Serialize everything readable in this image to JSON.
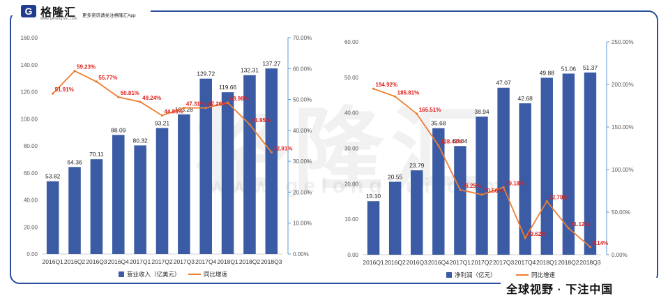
{
  "header": {
    "logo_letter": "G",
    "brand": "格隆汇",
    "brand_url": "www.gelonghui.com",
    "slogan": "更多资讯请关注格隆汇App"
  },
  "footer": {
    "text": "全球视野 · 下注中国"
  },
  "watermark": {
    "text": "格隆汇",
    "url": "www.gelonghui.com"
  },
  "chart_data": [
    {
      "type": "bar",
      "categories": [
        "2016Q1",
        "2016Q2",
        "2016Q3",
        "2016Q4",
        "2017Q1",
        "2017Q2",
        "2017Q3",
        "2017Q4",
        "2018Q1",
        "2018Q2",
        "2018Q3"
      ],
      "series": [
        {
          "name": "营业收入（亿美元）",
          "type": "bar",
          "axis": "left",
          "values": [
            53.82,
            64.36,
            70.11,
            88.09,
            80.32,
            93.21,
            103.28,
            129.72,
            119.66,
            132.31,
            137.27
          ],
          "color": "#3b5ba5"
        },
        {
          "name": "同比增速",
          "type": "line",
          "axis": "right",
          "values": [
            51.91,
            59.23,
            55.77,
            50.81,
            49.24,
            44.83,
            47.31,
            47.26,
            48.98,
            41.95,
            32.91
          ],
          "color": "#ed7d31"
        }
      ],
      "data_labels_bar": [
        "53.82",
        "64.36",
        "70.11",
        "88.09",
        "80.32",
        "93.21",
        "103.28",
        "129.72",
        "119.66",
        "132.31",
        "137.27"
      ],
      "data_labels_line": [
        "51.91%",
        "59.23%",
        "55.77%",
        "50.81%",
        "49.24%",
        "44.83%",
        "47.31%",
        "47.26%",
        "48.98%",
        "41.95%",
        "32.91%"
      ],
      "ylim": [
        0,
        160
      ],
      "yticks": [
        "0.00",
        "20.00",
        "40.00",
        "60.00",
        "80.00",
        "100.00",
        "120.00",
        "140.00",
        "160.00"
      ],
      "y2lim": [
        0,
        70
      ],
      "y2ticks": [
        "0.00%",
        "10.00%",
        "20.00%",
        "30.00%",
        "40.00%",
        "50.00%",
        "60.00%",
        "70.00%"
      ],
      "legend": [
        "营业收入（亿美元）",
        "同比增速"
      ],
      "legend_position": "bottom",
      "grid": false
    },
    {
      "type": "bar",
      "categories": [
        "2016Q1",
        "2016Q2",
        "2016Q3",
        "2016Q4",
        "2017Q1",
        "2017Q2",
        "2017Q3",
        "2017Q4",
        "2018Q1",
        "2018Q2",
        "2018Q3"
      ],
      "series": [
        {
          "name": "净利润（亿元）",
          "type": "bar",
          "axis": "left",
          "values": [
            15.1,
            20.55,
            23.79,
            35.68,
            30.64,
            38.94,
            47.07,
            42.68,
            49.88,
            51.06,
            51.37
          ],
          "color": "#3b5ba5"
        },
        {
          "name": "同比增速",
          "type": "line",
          "axis": "right",
          "values": [
            194.92,
            185.81,
            165.51,
            128.43,
            76.25,
            70.56,
            79.18,
            19.62,
            62.79,
            31.12,
            9.14
          ],
          "color": "#ed7d31"
        }
      ],
      "data_labels_bar": [
        "15.10",
        "20.55",
        "23.79",
        "35.68",
        "30.64",
        "38.94",
        "47.07",
        "42.68",
        "49.88",
        "51.06",
        "51.37"
      ],
      "data_labels_line": [
        "194.92%",
        "185.81%",
        "165.51%",
        "128.43%",
        "76.25%",
        "70.56%",
        "79.18%",
        "19.62%",
        "62.79%",
        "31.12%",
        "9.14%"
      ],
      "ylim": [
        0,
        60
      ],
      "yticks": [
        "0.00",
        "10.00",
        "20.00",
        "30.00",
        "40.00",
        "50.00",
        "60.00"
      ],
      "y2lim": [
        0,
        250
      ],
      "y2ticks": [
        "0.00%",
        "50.00%",
        "100.00%",
        "150.00%",
        "200.00%",
        "250.00%"
      ],
      "legend": [
        "净利润（亿元）",
        "同比增速"
      ],
      "legend_position": "bottom",
      "grid": false
    }
  ]
}
